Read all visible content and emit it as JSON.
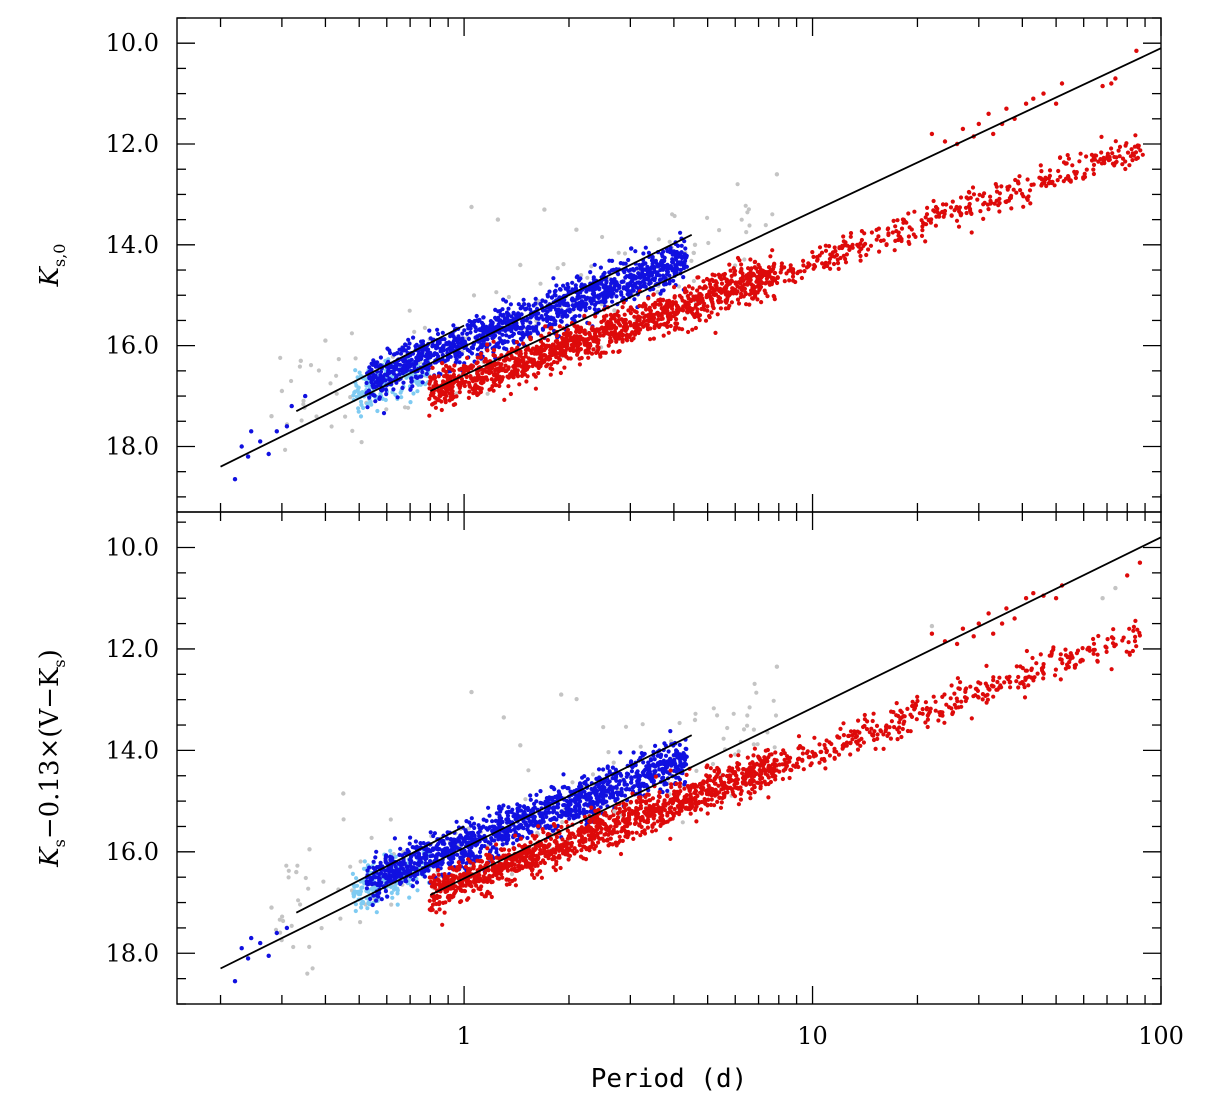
{
  "chart_data": {
    "type": "scatter",
    "xlabel": "Period (d)",
    "xscale": "log",
    "xlim": [
      0.15,
      100
    ],
    "x_tick_labels": [
      "1",
      "10",
      "100"
    ],
    "x_tick_values": [
      1,
      10,
      100
    ],
    "colors": {
      "light_blue": "#7fcbf2",
      "blue": "#1010e0",
      "red": "#dd0a0a",
      "gray": "#c4c4c4",
      "line": "#000000"
    },
    "panels": [
      {
        "ylabel_main": "K",
        "ylabel_sub": "s,0",
        "ylim": [
          19.3,
          9.5
        ],
        "y_tick_values": [
          10,
          12,
          14,
          16,
          18
        ],
        "y_tick_labels": [
          "10.0",
          "12.0",
          "14.0",
          "16.0",
          "18.0"
        ],
        "fit_lines": [
          {
            "series": "light blue",
            "x": [
              0.33,
              1.0
            ],
            "y": [
              17.3,
              15.6
            ]
          },
          {
            "series": "blue",
            "x": [
              0.2,
              4.5
            ],
            "y": [
              18.4,
              13.8
            ]
          },
          {
            "series": "red",
            "x": [
              0.8,
              100
            ],
            "y": [
              16.9,
              10.1
            ]
          }
        ],
        "clusters": [
          {
            "series": "light blue",
            "color": "light_blue",
            "n": 170,
            "logp": [
              -0.32,
              -0.1
            ],
            "slope": -2.55,
            "intercept": 16.15,
            "scatter": 0.22
          },
          {
            "series": "blue",
            "color": "blue",
            "n": 1300,
            "logp": [
              -0.28,
              0.64
            ],
            "slope": -2.61,
            "intercept": 15.95,
            "scatter": 0.22
          },
          {
            "series": "red",
            "color": "red",
            "n": 1300,
            "logp": [
              -0.1,
              0.9
            ],
            "slope": -2.38,
            "intercept": 16.7,
            "scatter": 0.2
          },
          {
            "series": "red",
            "color": "red",
            "n": 380,
            "logp": [
              0.9,
              1.95
            ],
            "slope": -2.38,
            "intercept": 16.7,
            "scatter": 0.16
          },
          {
            "series": "gray",
            "color": "gray",
            "n": 140,
            "logp": [
              -0.55,
              0.9
            ],
            "slope": -2.6,
            "intercept": 15.9,
            "scatter": 0.55
          }
        ],
        "points": [
          {
            "x": 0.22,
            "y": 18.65,
            "c": "blue"
          },
          {
            "x": 0.23,
            "y": 18.0,
            "c": "blue"
          },
          {
            "x": 0.24,
            "y": 18.2,
            "c": "blue"
          },
          {
            "x": 0.245,
            "y": 17.7,
            "c": "blue"
          },
          {
            "x": 0.26,
            "y": 17.9,
            "c": "blue"
          },
          {
            "x": 0.275,
            "y": 18.15,
            "c": "blue"
          },
          {
            "x": 0.29,
            "y": 17.7,
            "c": "blue"
          },
          {
            "x": 0.31,
            "y": 17.6,
            "c": "blue"
          },
          {
            "x": 0.28,
            "y": 17.4,
            "c": "gray"
          },
          {
            "x": 0.3,
            "y": 16.9,
            "c": "gray"
          },
          {
            "x": 0.34,
            "y": 16.3,
            "c": "gray"
          },
          {
            "x": 0.4,
            "y": 15.9,
            "c": "gray"
          },
          {
            "x": 0.32,
            "y": 17.2,
            "c": "blue"
          },
          {
            "x": 0.35,
            "y": 17.0,
            "c": "blue"
          },
          {
            "x": 1.05,
            "y": 13.25,
            "c": "gray"
          },
          {
            "x": 1.25,
            "y": 13.5,
            "c": "gray"
          },
          {
            "x": 1.7,
            "y": 13.3,
            "c": "gray"
          },
          {
            "x": 2.1,
            "y": 13.7,
            "c": "gray"
          },
          {
            "x": 1.45,
            "y": 14.4,
            "c": "gray"
          },
          {
            "x": 7.9,
            "y": 12.6,
            "c": "gray"
          },
          {
            "x": 4.6,
            "y": 14.0,
            "c": "gray"
          },
          {
            "x": 2.7,
            "y": 15.3,
            "c": "gray"
          },
          {
            "x": 22,
            "y": 11.8,
            "c": "red"
          },
          {
            "x": 24,
            "y": 11.95,
            "c": "red"
          },
          {
            "x": 27,
            "y": 11.7,
            "c": "red"
          },
          {
            "x": 30,
            "y": 11.6,
            "c": "red"
          },
          {
            "x": 32,
            "y": 11.4,
            "c": "red"
          },
          {
            "x": 33,
            "y": 11.8,
            "c": "red"
          },
          {
            "x": 35,
            "y": 11.6,
            "c": "red"
          },
          {
            "x": 36,
            "y": 11.3,
            "c": "red"
          },
          {
            "x": 38,
            "y": 11.5,
            "c": "red"
          },
          {
            "x": 41,
            "y": 11.2,
            "c": "red"
          },
          {
            "x": 43,
            "y": 11.1,
            "c": "red"
          },
          {
            "x": 46,
            "y": 11.0,
            "c": "red"
          },
          {
            "x": 50,
            "y": 11.2,
            "c": "red"
          },
          {
            "x": 68,
            "y": 10.85,
            "c": "red"
          },
          {
            "x": 72,
            "y": 10.8,
            "c": "red"
          },
          {
            "x": 74,
            "y": 10.7,
            "c": "red"
          },
          {
            "x": 85,
            "y": 10.15,
            "c": "red"
          },
          {
            "x": 52,
            "y": 10.8,
            "c": "red"
          },
          {
            "x": 26,
            "y": 12.0,
            "c": "red"
          },
          {
            "x": 29,
            "y": 11.85,
            "c": "red"
          }
        ]
      },
      {
        "ylabel_main": "K",
        "ylabel_sub": "s",
        "ylabel_rest": "−0.13×(V−K",
        "ylabel_rest_sub": "s",
        "ylabel_end": ")",
        "ylim": [
          19.0,
          9.3
        ],
        "y_tick_values": [
          10,
          12,
          14,
          16,
          18
        ],
        "y_tick_labels": [
          "10.0",
          "12.0",
          "14.0",
          "16.0",
          "18.0"
        ],
        "fit_lines": [
          {
            "series": "light blue",
            "x": [
              0.33,
              1.0
            ],
            "y": [
              17.2,
              15.5
            ]
          },
          {
            "series": "blue",
            "x": [
              0.2,
              4.5
            ],
            "y": [
              18.3,
              13.7
            ]
          },
          {
            "series": "red",
            "x": [
              0.8,
              100
            ],
            "y": [
              16.85,
              9.8
            ]
          }
        ],
        "clusters": [
          {
            "series": "light blue",
            "color": "light_blue",
            "n": 170,
            "logp": [
              -0.32,
              -0.1
            ],
            "slope": -2.55,
            "intercept": 16.05,
            "scatter": 0.22
          },
          {
            "series": "blue",
            "color": "blue",
            "n": 1300,
            "logp": [
              -0.28,
              0.64
            ],
            "slope": -2.63,
            "intercept": 15.85,
            "scatter": 0.22
          },
          {
            "series": "red",
            "color": "red",
            "n": 1300,
            "logp": [
              -0.1,
              0.9
            ],
            "slope": -2.5,
            "intercept": 16.55,
            "scatter": 0.2
          },
          {
            "series": "red",
            "color": "red",
            "n": 380,
            "logp": [
              0.9,
              1.95
            ],
            "slope": -2.5,
            "intercept": 16.55,
            "scatter": 0.16
          },
          {
            "series": "gray",
            "color": "gray",
            "n": 140,
            "logp": [
              -0.55,
              0.9
            ],
            "slope": -2.6,
            "intercept": 15.8,
            "scatter": 0.55
          }
        ],
        "points": [
          {
            "x": 0.22,
            "y": 18.55,
            "c": "blue"
          },
          {
            "x": 0.23,
            "y": 17.9,
            "c": "blue"
          },
          {
            "x": 0.24,
            "y": 18.1,
            "c": "blue"
          },
          {
            "x": 0.245,
            "y": 17.7,
            "c": "blue"
          },
          {
            "x": 0.26,
            "y": 17.8,
            "c": "blue"
          },
          {
            "x": 0.275,
            "y": 18.05,
            "c": "blue"
          },
          {
            "x": 0.29,
            "y": 17.6,
            "c": "blue"
          },
          {
            "x": 0.31,
            "y": 17.5,
            "c": "blue"
          },
          {
            "x": 0.28,
            "y": 17.1,
            "c": "gray"
          },
          {
            "x": 0.33,
            "y": 16.4,
            "c": "gray"
          },
          {
            "x": 0.36,
            "y": 15.95,
            "c": "gray"
          },
          {
            "x": 0.45,
            "y": 14.85,
            "c": "gray"
          },
          {
            "x": 1.05,
            "y": 12.85,
            "c": "gray"
          },
          {
            "x": 1.3,
            "y": 13.35,
            "c": "gray"
          },
          {
            "x": 1.9,
            "y": 12.9,
            "c": "gray"
          },
          {
            "x": 1.45,
            "y": 13.9,
            "c": "gray"
          },
          {
            "x": 4.6,
            "y": 13.4,
            "c": "gray"
          },
          {
            "x": 7.9,
            "y": 12.35,
            "c": "gray"
          },
          {
            "x": 2.7,
            "y": 15.2,
            "c": "gray"
          },
          {
            "x": 22,
            "y": 11.55,
            "c": "gray"
          },
          {
            "x": 68,
            "y": 11.0,
            "c": "gray"
          },
          {
            "x": 74,
            "y": 10.8,
            "c": "gray"
          },
          {
            "x": 22,
            "y": 11.7,
            "c": "red"
          },
          {
            "x": 24,
            "y": 11.85,
            "c": "red"
          },
          {
            "x": 27,
            "y": 11.6,
            "c": "red"
          },
          {
            "x": 30,
            "y": 11.5,
            "c": "red"
          },
          {
            "x": 32,
            "y": 11.3,
            "c": "red"
          },
          {
            "x": 33,
            "y": 11.7,
            "c": "red"
          },
          {
            "x": 35,
            "y": 11.5,
            "c": "red"
          },
          {
            "x": 36,
            "y": 11.2,
            "c": "red"
          },
          {
            "x": 38,
            "y": 11.4,
            "c": "red"
          },
          {
            "x": 41,
            "y": 11.0,
            "c": "red"
          },
          {
            "x": 43,
            "y": 10.9,
            "c": "red"
          },
          {
            "x": 46,
            "y": 10.95,
            "c": "red"
          },
          {
            "x": 50,
            "y": 11.0,
            "c": "red"
          },
          {
            "x": 52,
            "y": 10.75,
            "c": "red"
          },
          {
            "x": 80,
            "y": 10.55,
            "c": "red"
          },
          {
            "x": 87,
            "y": 10.3,
            "c": "red"
          },
          {
            "x": 26,
            "y": 11.9,
            "c": "red"
          },
          {
            "x": 29,
            "y": 11.75,
            "c": "red"
          }
        ]
      }
    ]
  }
}
